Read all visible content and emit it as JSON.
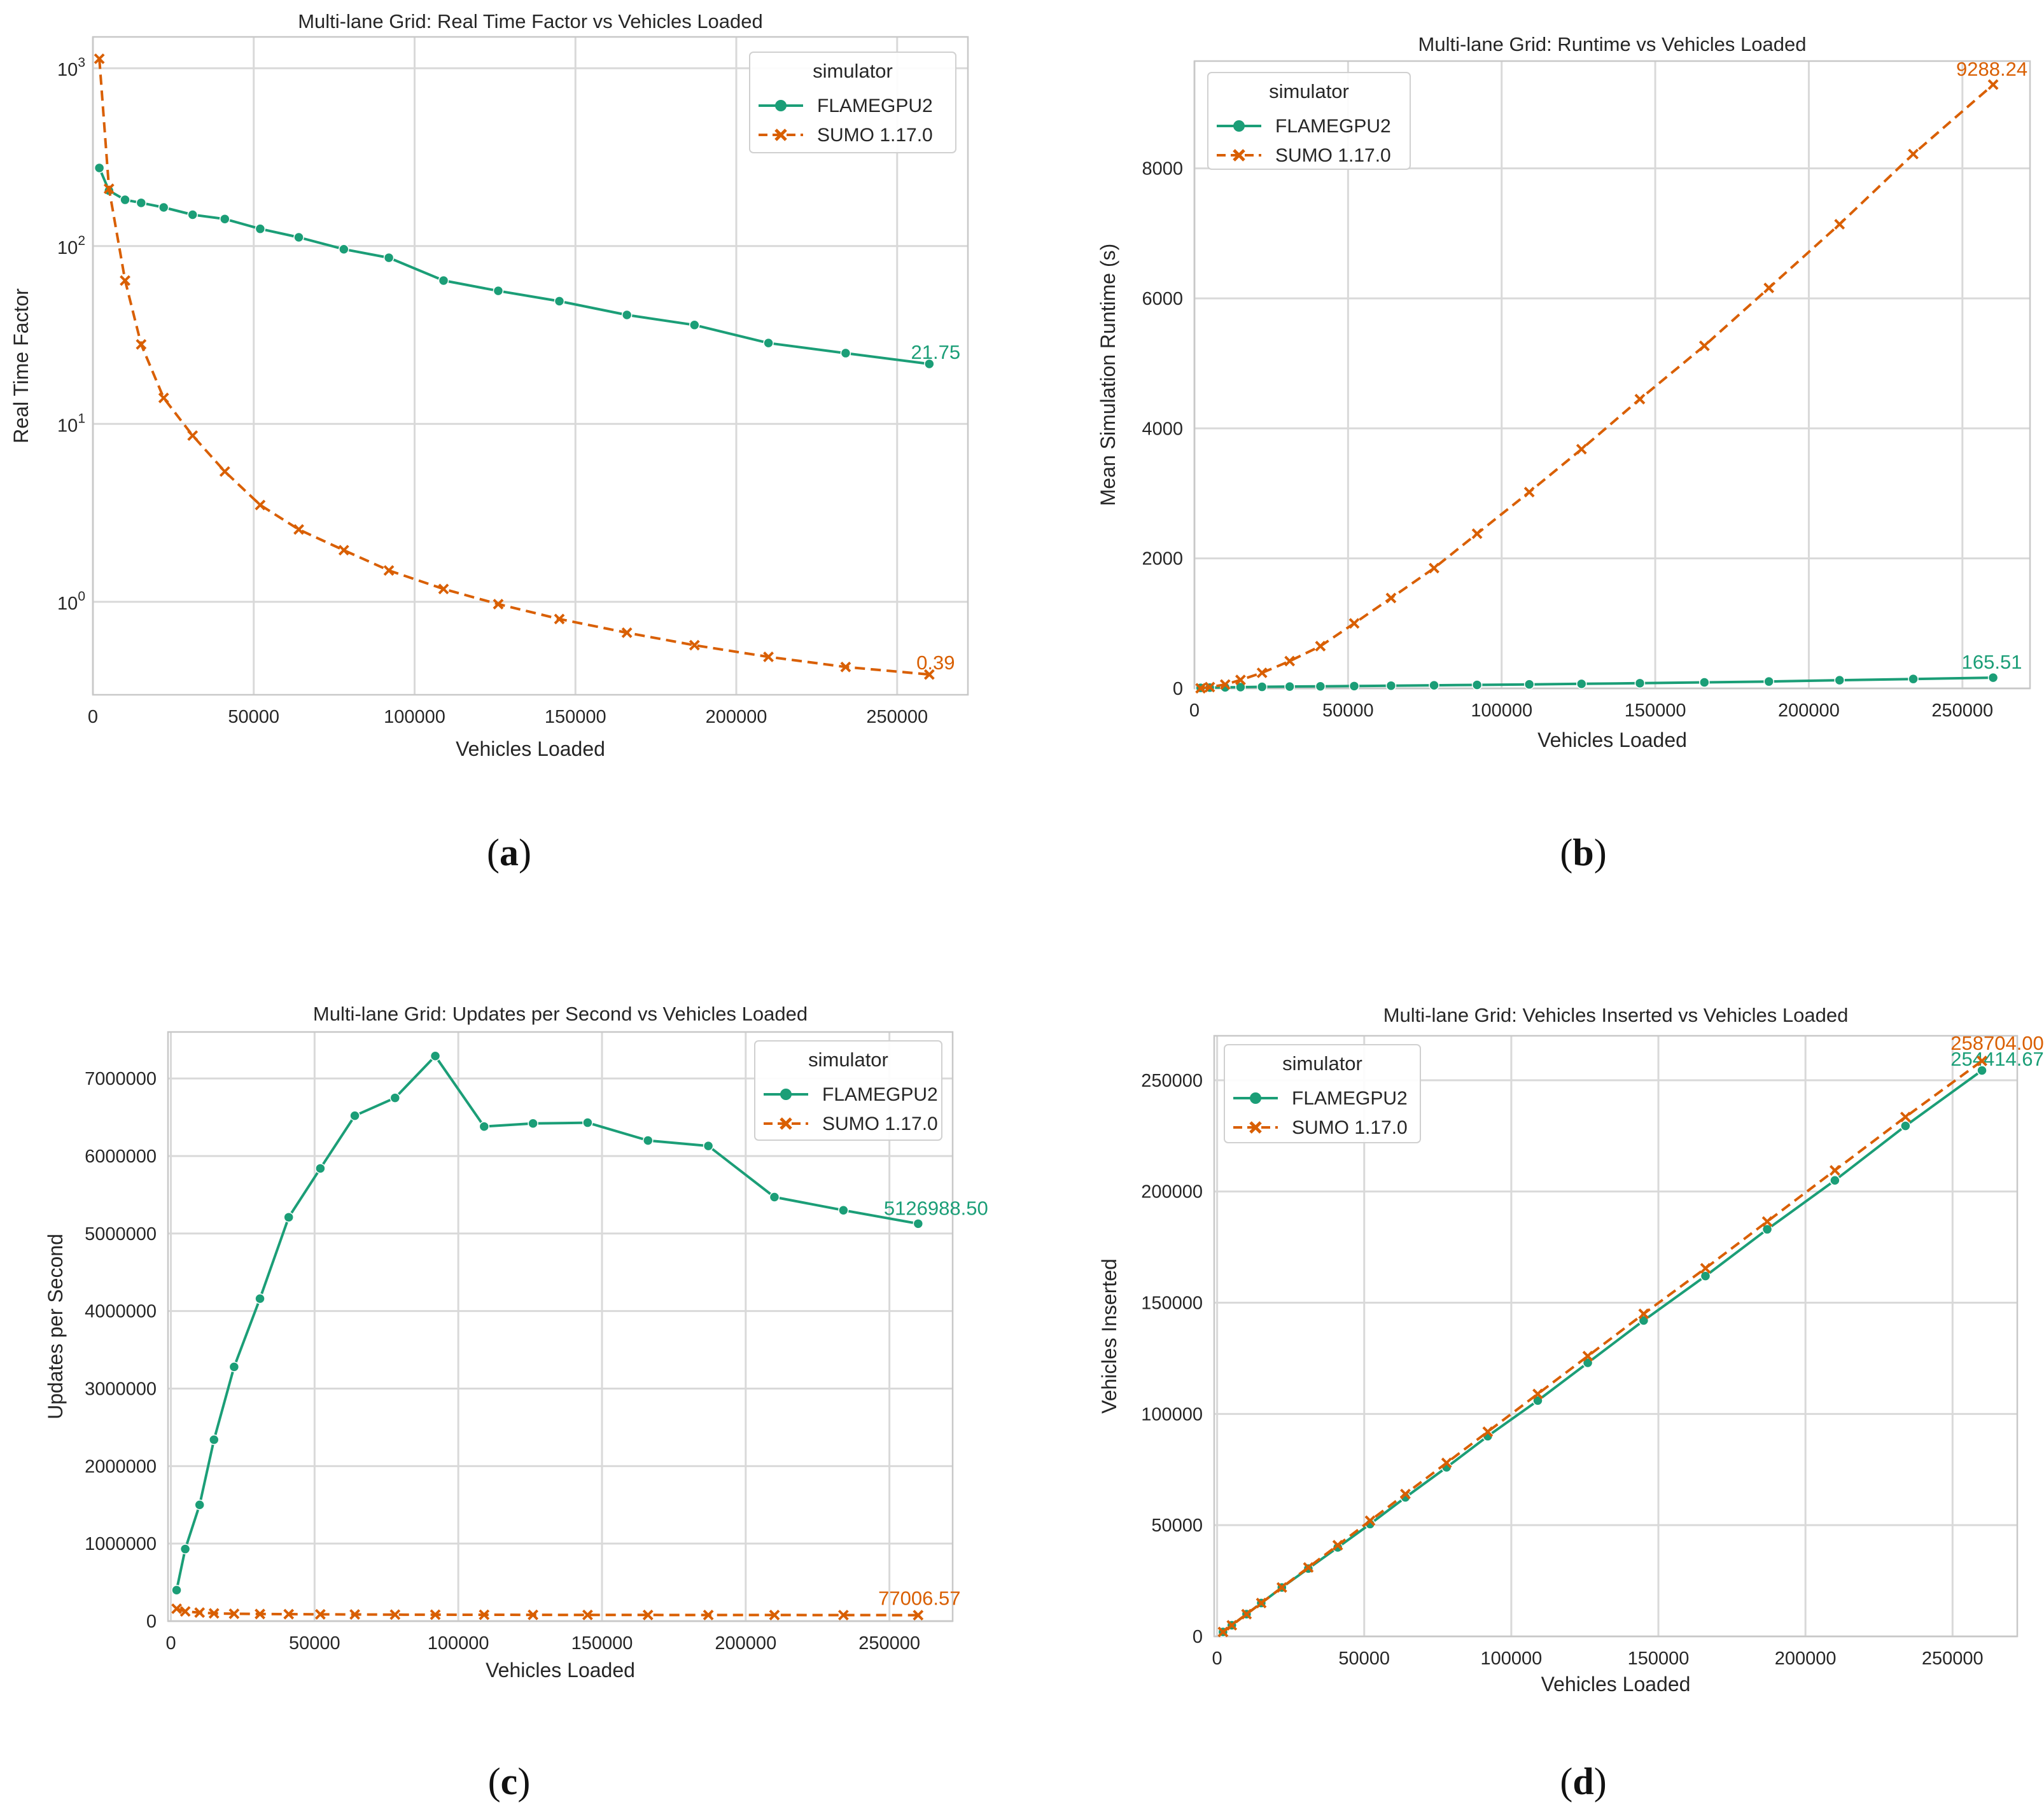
{
  "colors": {
    "flame": "#1b9e77",
    "sumo": "#d95f02"
  },
  "legend": {
    "title": "simulator",
    "entries": [
      "FLAMEGPU2",
      "SUMO 1.17.0"
    ]
  },
  "chart_data": [
    {
      "id": "a",
      "caption": "a",
      "type": "line",
      "title": "Multi-lane Grid: Real Time Factor vs Vehicles Loaded",
      "xlabel": "Vehicles Loaded",
      "ylabel": "Real Time Factor",
      "yscale": "log",
      "xlim": [
        0,
        272000
      ],
      "ylim": [
        0.3,
        1500
      ],
      "xticks": [
        0,
        50000,
        100000,
        150000,
        200000,
        250000
      ],
      "xtick_labels": [
        "0",
        "50000",
        "100000",
        "150000",
        "200000",
        "250000"
      ],
      "yticks": [
        1,
        10,
        100,
        1000
      ],
      "ytick_labels": [
        [
          "10",
          "0"
        ],
        [
          "10",
          "1"
        ],
        [
          "10",
          "2"
        ],
        [
          "10",
          "3"
        ]
      ],
      "legend_position": "top-right",
      "series": [
        {
          "name": "FLAMEGPU2",
          "x": [
            2000,
            5000,
            10000,
            15000,
            22000,
            31000,
            41000,
            52000,
            64000,
            78000,
            92000,
            109000,
            126000,
            145000,
            166000,
            187000,
            210000,
            234000,
            260000
          ],
          "y": [
            275,
            205,
            182,
            175,
            165,
            150,
            142,
            125,
            112,
            96,
            86,
            64,
            56,
            49,
            41,
            36,
            28.5,
            25,
            21.75
          ],
          "end_label": "21.75"
        },
        {
          "name": "SUMO 1.17.0",
          "x": [
            2000,
            5000,
            10000,
            15000,
            22000,
            31000,
            41000,
            52000,
            64000,
            78000,
            92000,
            109000,
            126000,
            145000,
            166000,
            187000,
            210000,
            234000,
            260000
          ],
          "y": [
            1130,
            210,
            64,
            28,
            14,
            8.6,
            5.4,
            3.5,
            2.55,
            1.95,
            1.5,
            1.18,
            0.97,
            0.8,
            0.67,
            0.57,
            0.49,
            0.43,
            0.39
          ],
          "end_label": "0.39"
        }
      ]
    },
    {
      "id": "b",
      "caption": "b",
      "type": "line",
      "title": "Multi-lane Grid: Runtime vs Vehicles Loaded",
      "xlabel": "Vehicles Loaded",
      "ylabel": "Mean Simulation Runtime (s)",
      "yscale": "linear",
      "xlim": [
        0,
        272000
      ],
      "ylim": [
        0,
        9650
      ],
      "xticks": [
        0,
        50000,
        100000,
        150000,
        200000,
        250000
      ],
      "xtick_labels": [
        "0",
        "50000",
        "100000",
        "150000",
        "200000",
        "250000"
      ],
      "yticks": [
        0,
        2000,
        4000,
        6000,
        8000
      ],
      "ytick_labels": [
        "0",
        "2000",
        "4000",
        "6000",
        "8000"
      ],
      "legend_position": "top-left",
      "series": [
        {
          "name": "FLAMEGPU2",
          "x": [
            2000,
            5000,
            10000,
            15000,
            22000,
            31000,
            41000,
            52000,
            64000,
            78000,
            92000,
            109000,
            126000,
            145000,
            166000,
            187000,
            210000,
            234000,
            260000
          ],
          "y": [
            8,
            12,
            16,
            20,
            24,
            28,
            32,
            36,
            42,
            48,
            54,
            62,
            70,
            80,
            93,
            106,
            126,
            145,
            165.51
          ],
          "end_label": "165.51"
        },
        {
          "name": "SUMO 1.17.0",
          "x": [
            2000,
            5000,
            10000,
            15000,
            22000,
            31000,
            41000,
            52000,
            64000,
            78000,
            92000,
            109000,
            126000,
            145000,
            166000,
            187000,
            210000,
            234000,
            260000
          ],
          "y": [
            2,
            20,
            60,
            130,
            240,
            420,
            650,
            1000,
            1390,
            1850,
            2380,
            3020,
            3680,
            4450,
            5270,
            6160,
            7140,
            8220,
            9288.24
          ],
          "end_label": "9288.24"
        }
      ]
    },
    {
      "id": "c",
      "caption": "c",
      "type": "line",
      "title": "Multi-lane Grid: Updates per Second vs Vehicles Loaded",
      "xlabel": "Vehicles Loaded",
      "ylabel": "Updates per Second",
      "yscale": "linear",
      "xlim": [
        -1000,
        272000
      ],
      "ylim": [
        0,
        7600000
      ],
      "xticks": [
        0,
        50000,
        100000,
        150000,
        200000,
        250000
      ],
      "xtick_labels": [
        "0",
        "50000",
        "100000",
        "150000",
        "200000",
        "250000"
      ],
      "yticks": [
        0,
        1000000,
        2000000,
        3000000,
        4000000,
        5000000,
        6000000,
        7000000
      ],
      "ytick_labels": [
        "0",
        "1000000",
        "2000000",
        "3000000",
        "4000000",
        "5000000",
        "6000000",
        "7000000"
      ],
      "legend_position": "top-right",
      "series": [
        {
          "name": "FLAMEGPU2",
          "x": [
            2000,
            5000,
            10000,
            15000,
            22000,
            31000,
            41000,
            52000,
            64000,
            78000,
            92000,
            109000,
            126000,
            145000,
            166000,
            187000,
            210000,
            234000,
            260000
          ],
          "y": [
            400000,
            930000,
            1500000,
            2340000,
            3280000,
            4160000,
            5210000,
            5840000,
            6520000,
            6750000,
            7290000,
            6380000,
            6420000,
            6430000,
            6200000,
            6130000,
            5470000,
            5300000,
            5126988.5
          ],
          "end_label": "5126988.50"
        },
        {
          "name": "SUMO 1.17.0",
          "x": [
            2000,
            5000,
            10000,
            15000,
            22000,
            31000,
            41000,
            52000,
            64000,
            78000,
            92000,
            109000,
            126000,
            145000,
            166000,
            187000,
            210000,
            234000,
            260000
          ],
          "y": [
            160000,
            125000,
            110000,
            100000,
            95000,
            92000,
            90000,
            88000,
            86000,
            84000,
            83000,
            82000,
            81000,
            80000,
            79500,
            79000,
            78500,
            78000,
            77006.57
          ],
          "end_label": "77006.57"
        }
      ]
    },
    {
      "id": "d",
      "caption": "d",
      "type": "line",
      "title": "Multi-lane Grid: Vehicles Inserted vs Vehicles Loaded",
      "xlabel": "Vehicles Loaded",
      "ylabel": "Vehicles Inserted",
      "yscale": "linear",
      "xlim": [
        -1000,
        272000
      ],
      "ylim": [
        0,
        270000
      ],
      "xticks": [
        0,
        50000,
        100000,
        150000,
        200000,
        250000
      ],
      "xtick_labels": [
        "0",
        "50000",
        "100000",
        "150000",
        "200000",
        "250000"
      ],
      "yticks": [
        0,
        50000,
        100000,
        150000,
        200000,
        250000
      ],
      "ytick_labels": [
        "0",
        "50000",
        "100000",
        "150000",
        "200000",
        "250000"
      ],
      "legend_position": "top-left",
      "series": [
        {
          "name": "FLAMEGPU2",
          "x": [
            2000,
            5000,
            10000,
            15000,
            22000,
            31000,
            41000,
            52000,
            64000,
            78000,
            92000,
            109000,
            126000,
            145000,
            166000,
            187000,
            210000,
            234000,
            260000
          ],
          "y": [
            2000,
            5000,
            10000,
            15000,
            22000,
            30500,
            40000,
            50500,
            62500,
            76000,
            90000,
            106000,
            123000,
            142000,
            162000,
            183000,
            205000,
            229500,
            254414.67
          ],
          "end_label": "254414.67"
        },
        {
          "name": "SUMO 1.17.0",
          "x": [
            2000,
            5000,
            10000,
            15000,
            22000,
            31000,
            41000,
            52000,
            64000,
            78000,
            92000,
            109000,
            126000,
            145000,
            166000,
            187000,
            210000,
            234000,
            260000
          ],
          "y": [
            2000,
            5000,
            10000,
            15000,
            22000,
            31000,
            41000,
            52000,
            64000,
            78000,
            92000,
            109000,
            126000,
            145000,
            165500,
            186500,
            209500,
            233500,
            258704.0
          ],
          "end_label": "258704.00"
        }
      ]
    }
  ]
}
